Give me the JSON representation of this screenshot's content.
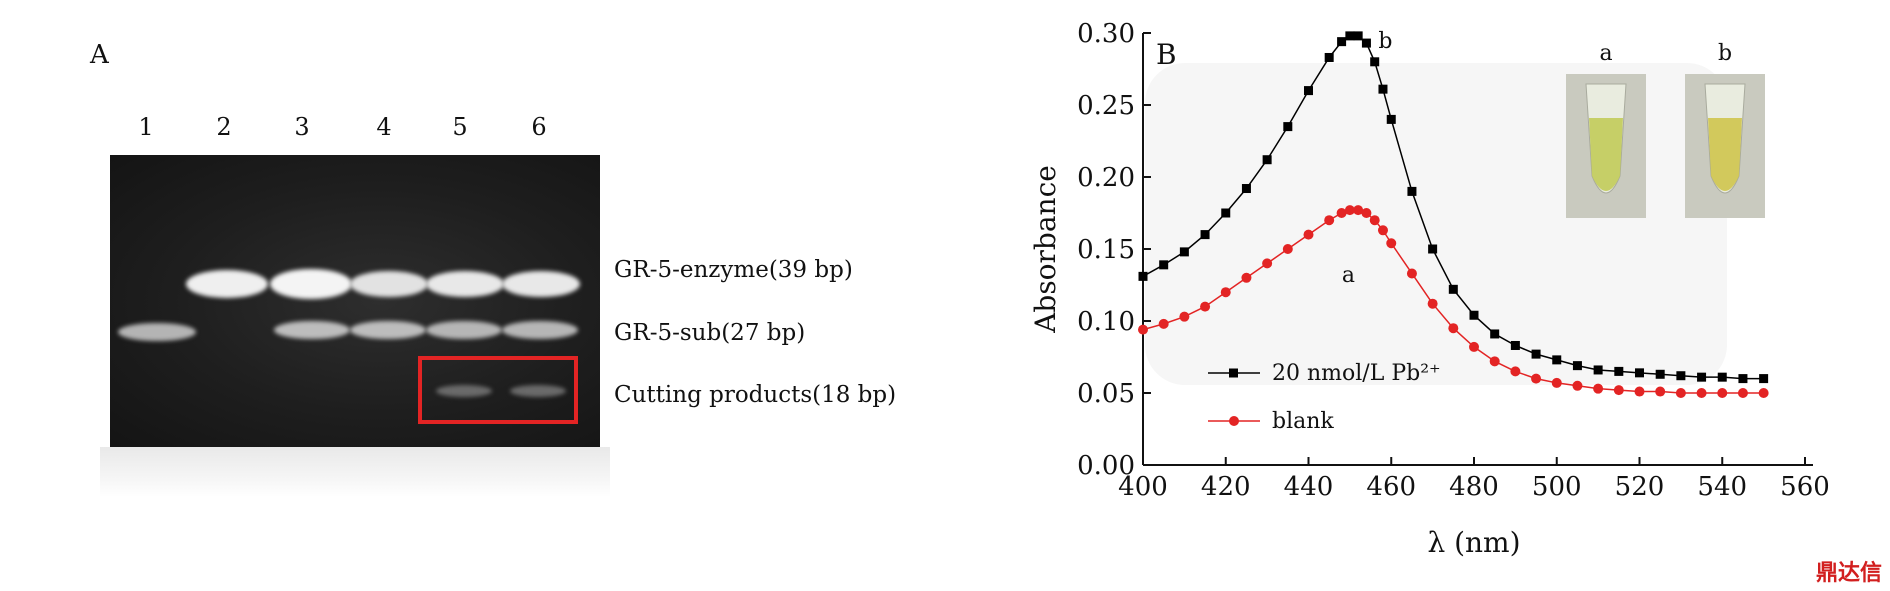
{
  "panel_a": {
    "letter": "A",
    "lanes": [
      "1",
      "2",
      "3",
      "4",
      "5",
      "6"
    ],
    "bands": [
      {
        "label": "GR-5-enzyme(39 bp)",
        "lanes": [
          2,
          3,
          4,
          5,
          6
        ],
        "intensity": [
          1,
          1,
          0.9,
          0.95,
          0.95
        ]
      },
      {
        "label": "GR-5-sub(27 bp)",
        "lanes": [
          1,
          3,
          4,
          5,
          6
        ],
        "intensity": [
          0.7,
          0.8,
          0.8,
          0.75,
          0.75
        ]
      },
      {
        "label": "Cutting products(18 bp)",
        "lanes": [
          5,
          6
        ],
        "intensity": [
          0.35,
          0.35
        ]
      }
    ],
    "highlight_color": "#e32424"
  },
  "chart_data": {
    "type": "line",
    "panel_letter": "B",
    "xlabel": "λ (nm)",
    "ylabel": "Absorbance",
    "xlim": [
      400,
      560
    ],
    "ylim": [
      0.0,
      0.3
    ],
    "xticks": [
      "400",
      "420",
      "440",
      "460",
      "480",
      "500",
      "520",
      "540",
      "560"
    ],
    "yticks": [
      "0.00",
      "0.05",
      "0.10",
      "0.15",
      "0.20",
      "0.25",
      "0.30"
    ],
    "series": [
      {
        "name": "20 nmol/L Pb²⁺",
        "curve_label": "b",
        "color": "#000000",
        "marker": "square",
        "x": [
          400,
          405,
          410,
          415,
          420,
          425,
          430,
          435,
          440,
          445,
          448,
          450,
          452,
          454,
          456,
          458,
          460,
          465,
          470,
          475,
          480,
          485,
          490,
          495,
          500,
          505,
          510,
          515,
          520,
          525,
          530,
          535,
          540,
          545,
          550
        ],
        "y": [
          0.131,
          0.139,
          0.148,
          0.16,
          0.175,
          0.192,
          0.212,
          0.235,
          0.26,
          0.283,
          0.294,
          0.298,
          0.298,
          0.293,
          0.28,
          0.261,
          0.24,
          0.19,
          0.15,
          0.122,
          0.104,
          0.091,
          0.083,
          0.077,
          0.073,
          0.069,
          0.066,
          0.065,
          0.064,
          0.063,
          0.062,
          0.061,
          0.061,
          0.06,
          0.06
        ]
      },
      {
        "name": "blank",
        "curve_label": "a",
        "color": "#e32424",
        "marker": "circle",
        "x": [
          400,
          405,
          410,
          415,
          420,
          425,
          430,
          435,
          440,
          445,
          448,
          450,
          452,
          454,
          456,
          458,
          460,
          465,
          470,
          475,
          480,
          485,
          490,
          495,
          500,
          505,
          510,
          515,
          520,
          525,
          530,
          535,
          540,
          545,
          550
        ],
        "y": [
          0.094,
          0.098,
          0.103,
          0.11,
          0.12,
          0.13,
          0.14,
          0.15,
          0.16,
          0.17,
          0.175,
          0.177,
          0.177,
          0.175,
          0.17,
          0.163,
          0.154,
          0.133,
          0.112,
          0.095,
          0.082,
          0.072,
          0.065,
          0.06,
          0.057,
          0.055,
          0.053,
          0.052,
          0.051,
          0.051,
          0.05,
          0.05,
          0.05,
          0.05,
          0.05
        ]
      }
    ],
    "legend_position": "bottom-left",
    "grid": false,
    "inset_labels": [
      "a",
      "b"
    ]
  },
  "watermark": "鼎达信"
}
